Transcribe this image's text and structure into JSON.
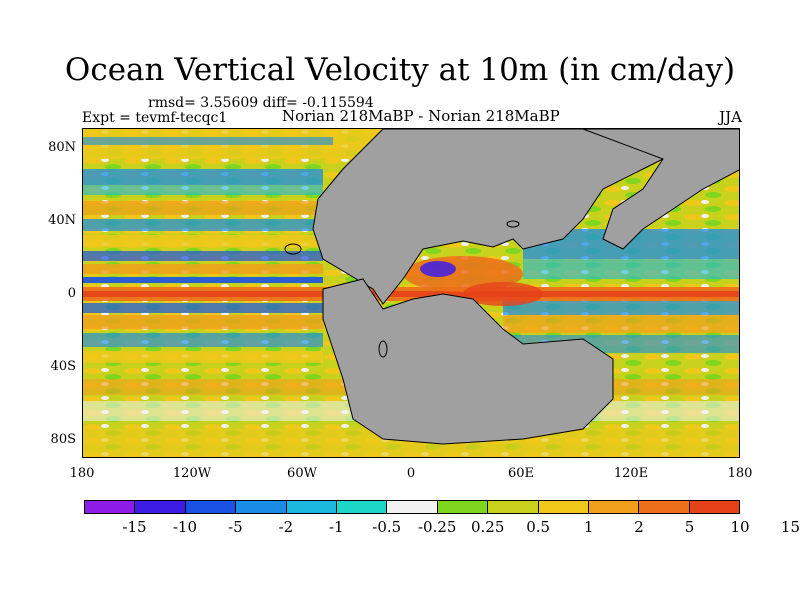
{
  "title": "Ocean Vertical Velocity at 10m (in cm/day)",
  "stats": "rmsd= 3.55609  diff= -0.115594",
  "experiment": "Expt = tevmf-tecqc1",
  "comparison": "Norian 218MaBP - Norian 218MaBP",
  "season": "JJA",
  "y_ticks": [
    "80N",
    "40N",
    "0",
    "40S",
    "80S"
  ],
  "x_ticks": [
    "180",
    "120W",
    "60W",
    "0",
    "60E",
    "120E",
    "180"
  ],
  "colorbar": {
    "colors": [
      "#8c1ce6",
      "#3d1ce6",
      "#1a52e6",
      "#1a8ce6",
      "#1cb8e0",
      "#1ed6c8",
      "#f2f2f2",
      "#7ed61e",
      "#c8d21c",
      "#f0c81a",
      "#f0a01a",
      "#ec6e1a",
      "#e6421a"
    ],
    "labels": [
      "-15",
      "-10",
      "-5",
      "-2",
      "-1",
      "-0.5",
      "-0.25",
      "0.25",
      "0.5",
      "1",
      "2",
      "5",
      "10",
      "15"
    ]
  },
  "land_color": "#a0a0a0"
}
